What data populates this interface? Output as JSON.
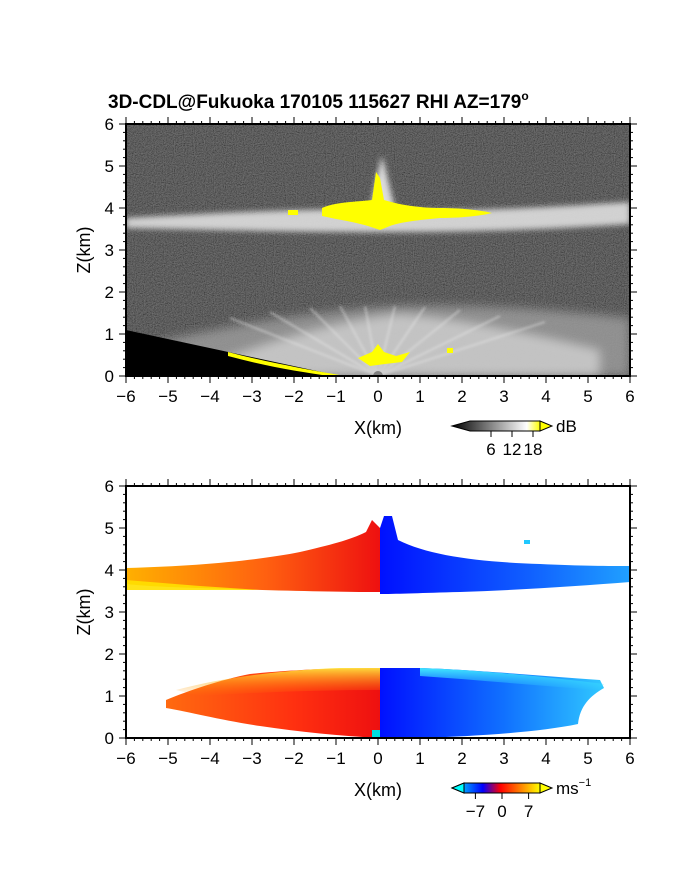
{
  "title": "3D-CDL@Fukuoka 170105 115627 RHI AZ=179",
  "title_superscript": "o",
  "chart_data": [
    {
      "type": "heatmap",
      "quantity": "backscatter intensity",
      "xlabel": "X(km)",
      "ylabel": "Z(km)",
      "xlim": [
        -6,
        6
      ],
      "ylim": [
        0,
        6
      ],
      "xticks": [
        "−6",
        "−5",
        "−4",
        "−3",
        "−2",
        "−1",
        "0",
        "1",
        "2",
        "3",
        "4",
        "5",
        "6"
      ],
      "yticks": [
        "0",
        "1",
        "2",
        "3",
        "4",
        "5",
        "6"
      ],
      "colorbar": {
        "unit": "dB",
        "ticks": [
          "6",
          "12",
          "18"
        ],
        "range": [
          0,
          20
        ],
        "colors": [
          "#000000",
          "#ffffff",
          "#ffff00"
        ]
      },
      "features": [
        {
          "layer": "cloud layer",
          "x_range": [
            -6,
            6
          ],
          "z_center_km": 3.85,
          "z_thickness_km": 0.35
        },
        {
          "layer": "saturated (yellow) core",
          "x_range": [
            -1.3,
            2.7
          ],
          "z_center_km": 3.95,
          "peak_z_km": 5.0,
          "peak_x_km": 0.1
        },
        {
          "layer": "boundary layer returns",
          "x_range": [
            -6,
            6
          ],
          "z_top_km": 1.6
        }
      ]
    },
    {
      "type": "heatmap",
      "quantity": "radial velocity",
      "xlabel": "X(km)",
      "ylabel": "Z(km)",
      "xlim": [
        -6,
        6
      ],
      "ylim": [
        0,
        6
      ],
      "xticks": [
        "−6",
        "−5",
        "−4",
        "−3",
        "−2",
        "−1",
        "0",
        "1",
        "2",
        "3",
        "4",
        "5",
        "6"
      ],
      "yticks": [
        "0",
        "1",
        "2",
        "3",
        "4",
        "5",
        "6"
      ],
      "colorbar": {
        "unit": "ms",
        "unit_superscript": "−1",
        "ticks": [
          "−7",
          "0",
          "7"
        ],
        "range": [
          -10,
          10
        ],
        "colors": [
          "#00ffff",
          "#0000ff",
          "#ff0000",
          "#ffff00"
        ]
      },
      "features": [
        {
          "region": "upper layer positive",
          "x_range": [
            -6,
            0
          ],
          "z_range": [
            3.5,
            4.4
          ],
          "velocity": "positive (orange to red)"
        },
        {
          "region": "upper layer negative",
          "x_range": [
            0,
            6
          ],
          "z_range": [
            3.5,
            4.4
          ],
          "velocity": "negative (blue)"
        },
        {
          "region": "lower layer positive",
          "x_range": [
            -5.2,
            0
          ],
          "z_range": [
            0,
            1.6
          ],
          "velocity": "positive (red to yellow)"
        },
        {
          "region": "lower layer negative",
          "x_range": [
            0,
            5.5
          ],
          "z_range": [
            0,
            1.6
          ],
          "velocity": "negative (blue to cyan)"
        }
      ]
    }
  ]
}
